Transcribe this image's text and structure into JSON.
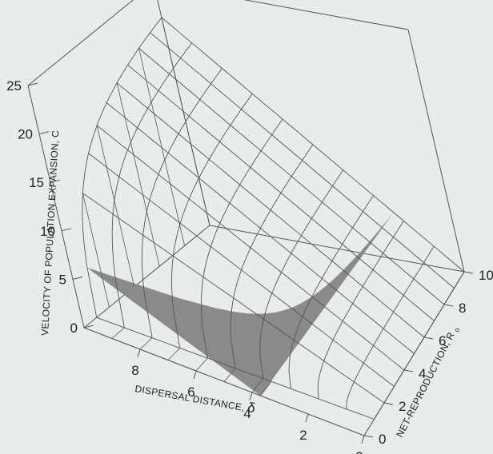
{
  "chart_data": {
    "type": "surface",
    "title": "",
    "zlabel": "VELOCITY OF POPULATION EXPANSION, C",
    "xlabel": "DISPERSAL DISTANCE,",
    "xlabel_symbol": "δ",
    "ylabel": "NET-REPRODUCTION, R",
    "ylabel_subscript": "o",
    "xlim": [
      0,
      10
    ],
    "ylim": [
      0,
      10
    ],
    "zlim": [
      0,
      25
    ],
    "x_ticks": [
      "0",
      "2",
      "4",
      "6",
      "8"
    ],
    "y_ticks": [
      "0",
      "2",
      "4",
      "6",
      "8",
      "10"
    ],
    "z_ticks": [
      "0",
      "5",
      "10",
      "15",
      "20",
      "25"
    ],
    "surface": "C = δ·sqrt(2·ln R)",
    "highlight_region": "C < 5",
    "grid": true,
    "colors": {
      "background": "#e9ecec",
      "mesh": "#555555",
      "highlight": "#8a8a8a"
    }
  }
}
